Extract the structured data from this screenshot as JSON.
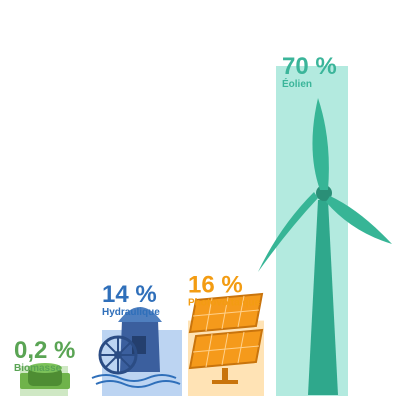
{
  "chart_data": {
    "type": "bar",
    "categories": [
      "Biomasse",
      "Hydraulique",
      "Photovoltaïque",
      "Éolien"
    ],
    "values": [
      0.2,
      14,
      16,
      70
    ],
    "value_labels": [
      "0,2 %",
      "14 %",
      "16 %",
      "70 %"
    ],
    "colors": {
      "Biomasse": "#5aa454",
      "Hydraulique": "#2f6fba",
      "Photovoltaïque": "#f39c12",
      "Éolien": "#3bb59a"
    },
    "ylim": [
      0,
      70
    ],
    "grid": false,
    "icons": [
      "biomass-digester-icon",
      "watermill-icon",
      "solar-panel-icon",
      "wind-turbine-icon"
    ]
  }
}
